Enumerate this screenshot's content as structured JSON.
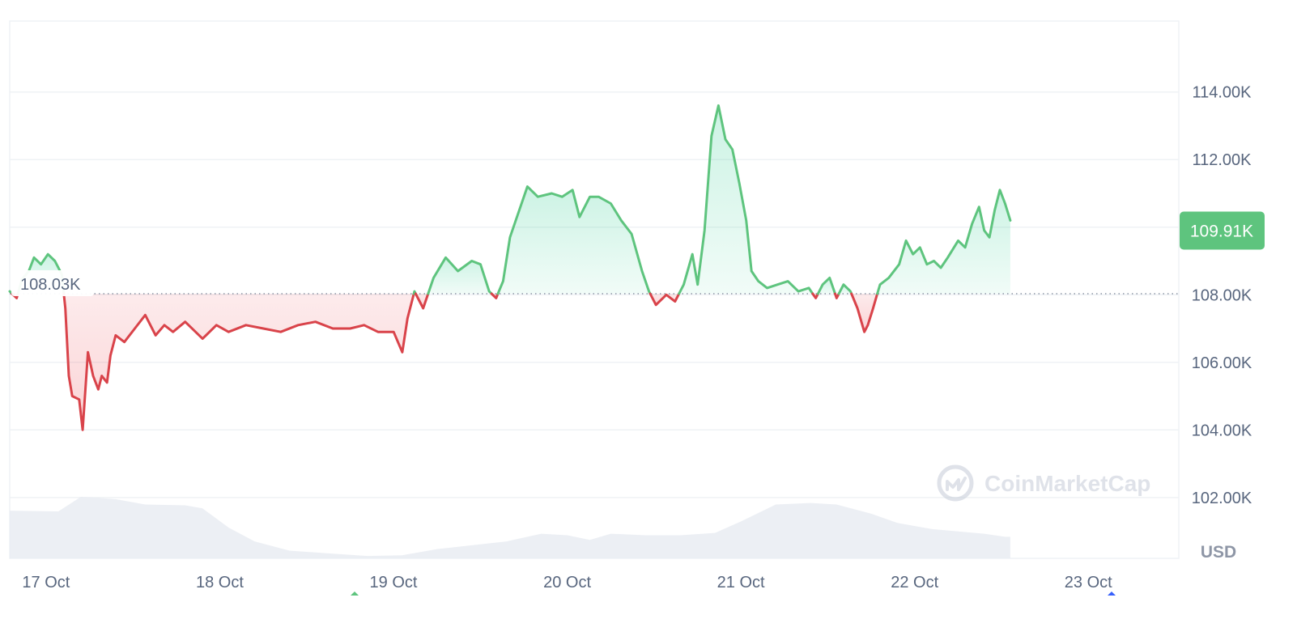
{
  "chart_data": {
    "type": "area",
    "currency": "USD",
    "y_ticks": [
      {
        "value": 114000,
        "label": "114.00K"
      },
      {
        "value": 112000,
        "label": "112.00K"
      },
      {
        "value": 108000,
        "label": "108.00K"
      },
      {
        "value": 106000,
        "label": "106.00K"
      },
      {
        "value": 104000,
        "label": "104.00K"
      },
      {
        "value": 102000,
        "label": "102.00K"
      }
    ],
    "ylim": [
      100200,
      116100
    ],
    "x_ticks": [
      {
        "t": 1.0,
        "label": "17 Oct"
      },
      {
        "t": 2.0,
        "label": "18 Oct"
      },
      {
        "t": 3.0,
        "label": "19 Oct"
      },
      {
        "t": 4.0,
        "label": "20 Oct"
      },
      {
        "t": 5.0,
        "label": "21 Oct"
      },
      {
        "t": 6.0,
        "label": "22 Oct"
      },
      {
        "t": 7.0,
        "label": "23 Oct"
      }
    ],
    "xlim": [
      0.94,
      7.67
    ],
    "baseline": {
      "value": 108030,
      "label": "108.03K"
    },
    "current": {
      "value": 109910,
      "label": "109.91K"
    },
    "colors": {
      "up": "#16c784",
      "up_line": "#5ec47e",
      "down": "#d9434a",
      "grid": "#eff2f5",
      "axis_text": "#58667e",
      "current_badge": "#5ec47e"
    },
    "price": [
      [
        0.94,
        108100
      ],
      [
        0.98,
        107900
      ],
      [
        1.01,
        108450
      ],
      [
        1.05,
        108700
      ],
      [
        1.08,
        109100
      ],
      [
        1.12,
        108900
      ],
      [
        1.16,
        109200
      ],
      [
        1.2,
        109000
      ],
      [
        1.24,
        108600
      ],
      [
        1.26,
        107600
      ],
      [
        1.28,
        105600
      ],
      [
        1.3,
        105000
      ],
      [
        1.34,
        104900
      ],
      [
        1.36,
        104000
      ],
      [
        1.39,
        106300
      ],
      [
        1.42,
        105600
      ],
      [
        1.45,
        105200
      ],
      [
        1.47,
        105600
      ],
      [
        1.5,
        105400
      ],
      [
        1.52,
        106200
      ],
      [
        1.55,
        106800
      ],
      [
        1.6,
        106600
      ],
      [
        1.66,
        107000
      ],
      [
        1.72,
        107400
      ],
      [
        1.78,
        106800
      ],
      [
        1.83,
        107100
      ],
      [
        1.88,
        106900
      ],
      [
        1.95,
        107200
      ],
      [
        2.05,
        106700
      ],
      [
        2.13,
        107100
      ],
      [
        2.2,
        106900
      ],
      [
        2.3,
        107100
      ],
      [
        2.4,
        107000
      ],
      [
        2.5,
        106900
      ],
      [
        2.6,
        107100
      ],
      [
        2.7,
        107200
      ],
      [
        2.8,
        107000
      ],
      [
        2.9,
        107000
      ],
      [
        2.98,
        107100
      ],
      [
        3.06,
        106900
      ],
      [
        3.15,
        106900
      ],
      [
        3.2,
        106300
      ],
      [
        3.23,
        107300
      ],
      [
        3.27,
        108100
      ],
      [
        3.32,
        107600
      ],
      [
        3.38,
        108500
      ],
      [
        3.45,
        109100
      ],
      [
        3.52,
        108700
      ],
      [
        3.6,
        109000
      ],
      [
        3.65,
        108900
      ],
      [
        3.7,
        108100
      ],
      [
        3.74,
        107900
      ],
      [
        3.78,
        108400
      ],
      [
        3.82,
        109700
      ],
      [
        3.86,
        110300
      ],
      [
        3.92,
        111200
      ],
      [
        3.98,
        110900
      ],
      [
        4.06,
        111000
      ],
      [
        4.12,
        110900
      ],
      [
        4.18,
        111100
      ],
      [
        4.22,
        110300
      ],
      [
        4.28,
        110900
      ],
      [
        4.33,
        110900
      ],
      [
        4.4,
        110700
      ],
      [
        4.46,
        110200
      ],
      [
        4.52,
        109800
      ],
      [
        4.58,
        108700
      ],
      [
        4.62,
        108100
      ],
      [
        4.66,
        107700
      ],
      [
        4.72,
        108000
      ],
      [
        4.77,
        107800
      ],
      [
        4.82,
        108300
      ],
      [
        4.87,
        109200
      ],
      [
        4.9,
        108300
      ],
      [
        4.94,
        109900
      ],
      [
        4.98,
        112700
      ],
      [
        5.02,
        113600
      ],
      [
        5.06,
        112600
      ],
      [
        5.1,
        112300
      ],
      [
        5.14,
        111300
      ],
      [
        5.18,
        110200
      ],
      [
        5.21,
        108700
      ],
      [
        5.25,
        108400
      ],
      [
        5.3,
        108200
      ],
      [
        5.36,
        108300
      ],
      [
        5.42,
        108400
      ],
      [
        5.48,
        108100
      ],
      [
        5.54,
        108200
      ],
      [
        5.58,
        107900
      ],
      [
        5.62,
        108300
      ],
      [
        5.66,
        108500
      ],
      [
        5.7,
        107900
      ],
      [
        5.74,
        108300
      ],
      [
        5.78,
        108100
      ],
      [
        5.82,
        107600
      ],
      [
        5.86,
        106900
      ],
      [
        5.88,
        107100
      ],
      [
        5.91,
        107600
      ],
      [
        5.95,
        108300
      ],
      [
        6.0,
        108500
      ],
      [
        6.06,
        108900
      ],
      [
        6.1,
        109600
      ],
      [
        6.14,
        109200
      ],
      [
        6.18,
        109400
      ],
      [
        6.22,
        108900
      ],
      [
        6.26,
        109000
      ],
      [
        6.3,
        108800
      ],
      [
        6.34,
        109100
      ],
      [
        6.4,
        109600
      ],
      [
        6.44,
        109400
      ],
      [
        6.48,
        110100
      ],
      [
        6.52,
        110600
      ],
      [
        6.55,
        109900
      ],
      [
        6.58,
        109700
      ],
      [
        6.61,
        110500
      ],
      [
        6.64,
        111100
      ],
      [
        6.67,
        110700
      ],
      [
        6.7,
        110200
      ]
    ],
    "volume": [
      [
        0.94,
        0.62
      ],
      [
        1.22,
        0.61
      ],
      [
        1.35,
        0.8
      ],
      [
        1.55,
        0.77
      ],
      [
        1.72,
        0.7
      ],
      [
        1.95,
        0.69
      ],
      [
        2.05,
        0.65
      ],
      [
        2.2,
        0.4
      ],
      [
        2.35,
        0.22
      ],
      [
        2.55,
        0.1
      ],
      [
        2.8,
        0.06
      ],
      [
        3.0,
        0.03
      ],
      [
        3.2,
        0.04
      ],
      [
        3.4,
        0.12
      ],
      [
        3.6,
        0.17
      ],
      [
        3.8,
        0.22
      ],
      [
        4.0,
        0.32
      ],
      [
        4.15,
        0.3
      ],
      [
        4.28,
        0.24
      ],
      [
        4.4,
        0.32
      ],
      [
        4.6,
        0.3
      ],
      [
        4.8,
        0.3
      ],
      [
        5.0,
        0.33
      ],
      [
        5.15,
        0.48
      ],
      [
        5.35,
        0.7
      ],
      [
        5.55,
        0.72
      ],
      [
        5.7,
        0.7
      ],
      [
        5.9,
        0.58
      ],
      [
        6.05,
        0.46
      ],
      [
        6.25,
        0.38
      ],
      [
        6.4,
        0.35
      ],
      [
        6.55,
        0.32
      ],
      [
        6.67,
        0.28
      ],
      [
        6.7,
        0.28
      ]
    ]
  },
  "watermark": {
    "text": "CoinMarketCap"
  }
}
